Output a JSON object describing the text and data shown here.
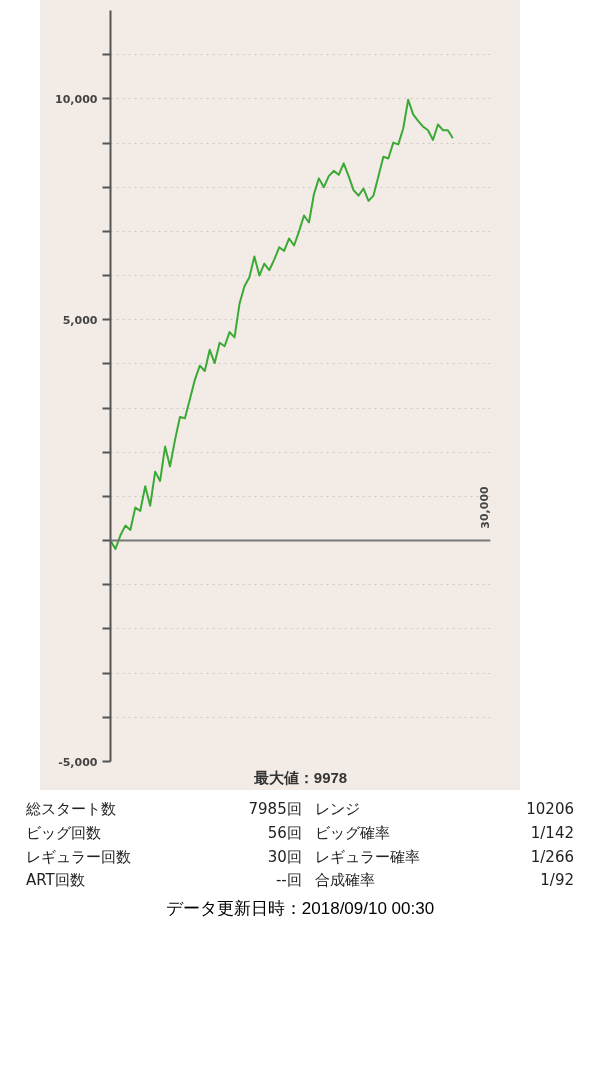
{
  "chart_data": {
    "type": "line",
    "ylim": [
      -5000,
      12000
    ],
    "categories": [
      null,
      null,
      null,
      null,
      null,
      null,
      null,
      null,
      null,
      null,
      null,
      null,
      null,
      null,
      null,
      null,
      null,
      null,
      null,
      null,
      null,
      null,
      null,
      null,
      null,
      null,
      null,
      null,
      null,
      null,
      null,
      null,
      null,
      null,
      null,
      null,
      null,
      null,
      null,
      null,
      null,
      null,
      null,
      null,
      null,
      null,
      null,
      null,
      null,
      null,
      null,
      null,
      null,
      null,
      null,
      null,
      null,
      null,
      null,
      null,
      null,
      null,
      null,
      null,
      null,
      null,
      null,
      null,
      null,
      null
    ],
    "yticks": [
      {
        "value": -5000,
        "label": "-5,000"
      },
      {
        "value": -4000,
        "label": null
      },
      {
        "value": -3000,
        "label": null
      },
      {
        "value": -2000,
        "label": null
      },
      {
        "value": -1000,
        "label": null
      },
      {
        "value": 0,
        "label": null
      },
      {
        "value": 1000,
        "label": null
      },
      {
        "value": 2000,
        "label": null
      },
      {
        "value": 3000,
        "label": null
      },
      {
        "value": 4000,
        "label": null
      },
      {
        "value": 5000,
        "label": "5,000"
      },
      {
        "value": 6000,
        "label": null
      },
      {
        "value": 7000,
        "label": null
      },
      {
        "value": 8000,
        "label": null
      },
      {
        "value": 9000,
        "label": null
      },
      {
        "value": 10000,
        "label": "10,000"
      },
      {
        "value": 11000,
        "label": null
      }
    ],
    "grid": "y",
    "marker": "none",
    "line_style": "solid",
    "ref_lines": [
      {
        "axis": "y",
        "value": 0,
        "color": "#777777"
      }
    ],
    "series": [
      {
        "color": "#3aaa35",
        "values": [
          0,
          -190,
          120,
          340,
          240,
          750,
          670,
          1230,
          790,
          1560,
          1350,
          2130,
          1680,
          2280,
          2800,
          2770,
          3200,
          3640,
          3960,
          3840,
          4320,
          4020,
          4480,
          4400,
          4720,
          4600,
          5360,
          5760,
          5960,
          6430,
          6000,
          6270,
          6120,
          6360,
          6640,
          6560,
          6840,
          6680,
          7000,
          7360,
          7200,
          7840,
          8200,
          8000,
          8250,
          8370,
          8280,
          8540,
          8250,
          7930,
          7810,
          7970,
          7690,
          7810,
          8250,
          8690,
          8650,
          9010,
          8970,
          9330,
          9980,
          9650,
          9500,
          9370,
          9290,
          9070,
          9420,
          9290,
          9290,
          9110
        ]
      }
    ],
    "annotations": [
      "30,000",
      "最大値：9978",
      "総スタート数",
      "7985回",
      "レンジ",
      "10206",
      "ビッグ回数",
      "56回",
      "ビッグ確率",
      "1/142",
      "レギュラー回数",
      "30回",
      "レギュラー確率",
      "1/266",
      "ART回数",
      "--回",
      "合成確率",
      "1/92",
      "データ更新日時：2018/09/10 00:30"
    ]
  }
}
